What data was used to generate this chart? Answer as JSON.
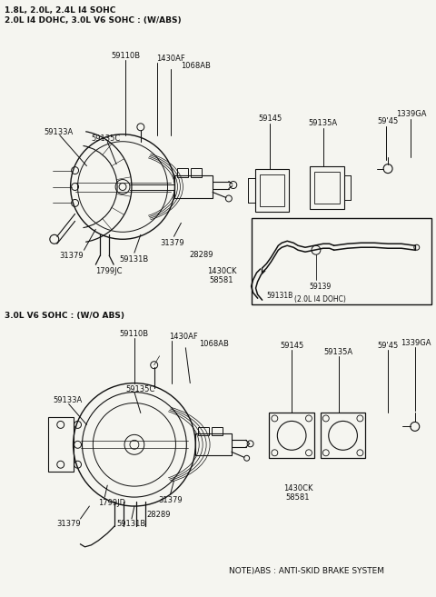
{
  "title_line1": "1.8L, 2.0L, 2.4L I4 SOHC",
  "title_line2": "2.0L I4 DOHC, 3.0L V6 SOHC : (W/ABS)",
  "section2_title": "3.0L V6 SOHC : (W/O ABS)",
  "note": "NOTE)ABS : ANTI-SKID BRAKE SYSTEM",
  "bg_color": "#f5f5f0",
  "line_color": "#111111",
  "text_color": "#111111",
  "fig_width": 4.8,
  "fig_height": 6.57,
  "dpi": 100
}
